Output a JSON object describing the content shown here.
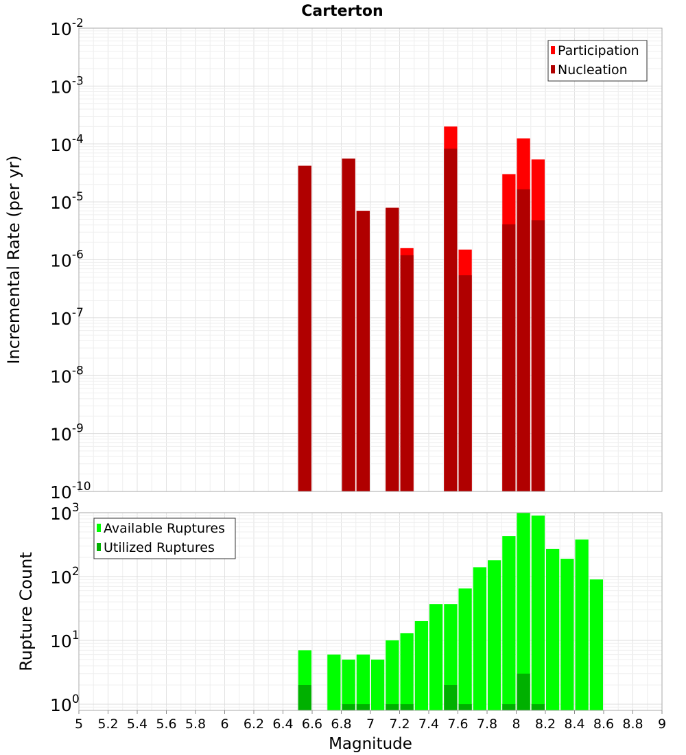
{
  "chart_data": [
    {
      "type": "bar",
      "title": "Carterton",
      "ylabel": "Incremental Rate (per yr)",
      "xlabel": "",
      "scale": "log",
      "xlim": [
        5,
        9
      ],
      "ylim": [
        1e-10,
        0.01
      ],
      "grid": true,
      "legend_position": "top-right",
      "yticks": [
        {
          "base": "10",
          "exp": "-10"
        },
        {
          "base": "10",
          "exp": "-9"
        },
        {
          "base": "10",
          "exp": "-8"
        },
        {
          "base": "10",
          "exp": "-7"
        },
        {
          "base": "10",
          "exp": "-6"
        },
        {
          "base": "10",
          "exp": "-5"
        },
        {
          "base": "10",
          "exp": "-4"
        },
        {
          "base": "10",
          "exp": "-3"
        },
        {
          "base": "10",
          "exp": "-2"
        }
      ],
      "bar_width": 0.1,
      "series": [
        {
          "name": "Participation",
          "color": "#ff0000",
          "x": [
            6.55,
            6.85,
            6.95,
            7.15,
            7.25,
            7.55,
            7.65,
            7.95,
            8.05,
            8.15
          ],
          "values": [
            4.2e-05,
            5.6e-05,
            7e-06,
            7.9e-06,
            1.6e-06,
            0.0002,
            1.5e-06,
            3e-05,
            0.000125,
            5.4e-05
          ]
        },
        {
          "name": "Nucleation",
          "color": "#b00000",
          "x": [
            6.55,
            6.85,
            6.95,
            7.15,
            7.25,
            7.55,
            7.65,
            7.95,
            8.05,
            8.15
          ],
          "values": [
            4.2e-05,
            5.6e-05,
            7e-06,
            7.9e-06,
            1.2e-06,
            8.3e-05,
            5.4e-07,
            4.1e-06,
            1.65e-05,
            4.8e-06
          ]
        }
      ]
    },
    {
      "type": "bar",
      "title": "",
      "ylabel": "Rupture Count",
      "xlabel": "Magnitude",
      "scale": "log",
      "xlim": [
        5,
        9
      ],
      "ylim": [
        0.8,
        1000
      ],
      "grid": true,
      "legend_position": "top-left",
      "xticks": [
        "5",
        "5.2",
        "5.4",
        "5.6",
        "5.8",
        "6",
        "6.2",
        "6.4",
        "6.6",
        "6.8",
        "7",
        "7.2",
        "7.4",
        "7.6",
        "7.8",
        "8",
        "8.2",
        "8.4",
        "8.6",
        "8.8",
        "9"
      ],
      "yticks": [
        {
          "base": "10",
          "exp": "0"
        },
        {
          "base": "10",
          "exp": "1"
        },
        {
          "base": "10",
          "exp": "2"
        },
        {
          "base": "10",
          "exp": "3"
        }
      ],
      "bar_width": 0.1,
      "series": [
        {
          "name": "Available Ruptures",
          "color": "#00ff00",
          "x": [
            6.55,
            6.75,
            6.85,
            6.95,
            7.05,
            7.15,
            7.25,
            7.35,
            7.45,
            7.55,
            7.65,
            7.75,
            7.85,
            7.95,
            8.05,
            8.15,
            8.25,
            8.35,
            8.45,
            8.55
          ],
          "values": [
            7,
            6,
            5,
            6,
            5,
            10,
            13,
            20,
            37,
            37,
            65,
            140,
            180,
            430,
            1050,
            900,
            270,
            190,
            380,
            90
          ]
        },
        {
          "name": "Utilized Ruptures",
          "color": "#00b000",
          "x": [
            6.55,
            6.85,
            6.95,
            7.15,
            7.25,
            7.55,
            7.65,
            7.95,
            8.05,
            8.15
          ],
          "values": [
            2,
            1,
            1,
            1,
            1,
            2,
            1,
            1,
            3,
            1
          ]
        }
      ]
    }
  ]
}
